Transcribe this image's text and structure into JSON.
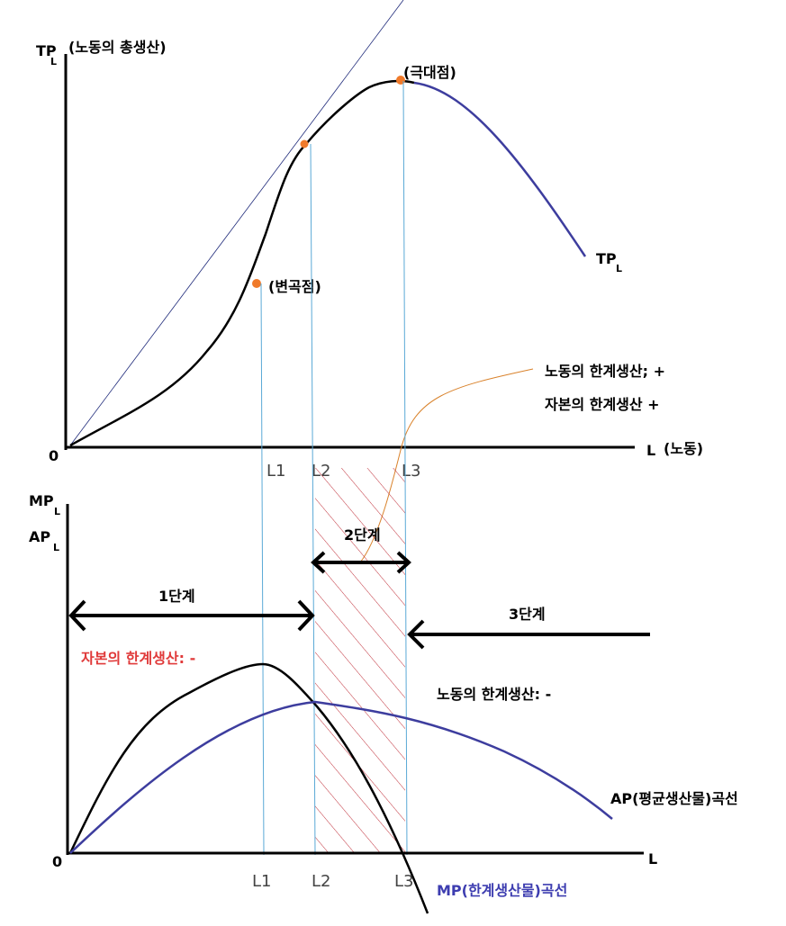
{
  "top_graph": {
    "y_axis_label": "TP",
    "y_axis_subscript": "L",
    "y_axis_note": "(노동의 총생산)",
    "origin": "0",
    "x_axis_label": "L",
    "x_axis_note": "(노동)",
    "curve_label": "TP",
    "curve_subscript": "L",
    "points": [
      "(변곡점)",
      "(극대점)"
    ],
    "ticks": [
      "L1",
      "L2",
      "L3"
    ],
    "annotation": [
      "노동의 한계생산; +",
      "자본의 한계생산 +"
    ]
  },
  "bottom_graph": {
    "y_axis_label_1": "MP",
    "y_axis_subscript_1": "L",
    "y_axis_label_2": "AP",
    "y_axis_subscript_2": "L",
    "origin": "0",
    "x_axis_label": "L",
    "ticks": [
      "L1",
      "L2",
      "L3"
    ],
    "stages": [
      "1단계",
      "2단계",
      "3단계"
    ],
    "capital_note": "자본의 한계생산: -",
    "labor_note": "노동의 한계생산: -",
    "ap_curve_label": "AP(평균생산물)곡선",
    "mp_curve_label": "MP(한계생산물)곡선"
  }
}
